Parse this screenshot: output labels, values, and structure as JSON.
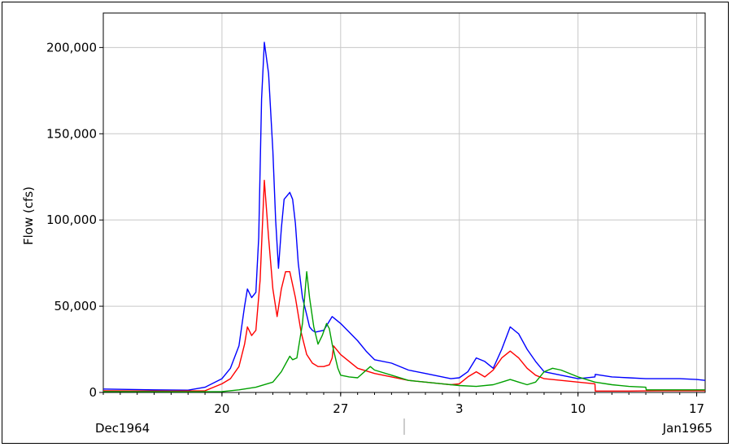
{
  "chart_data": {
    "type": "line",
    "title": "",
    "xlabel": "",
    "ylabel": "Flow (cfs)",
    "x_unit": "day (Dec 1964 – Jan 1965)",
    "xlim": [
      "1964-12-13",
      "1965-01-17 12:00"
    ],
    "ylim": [
      0,
      220000
    ],
    "yticks": [
      0,
      50000,
      100000,
      150000,
      200000
    ],
    "ytick_labels": [
      "0",
      "50,000",
      "100,000",
      "150,000",
      "200,000"
    ],
    "xticks": [
      "1964-12-20",
      "1964-12-27",
      "1965-01-03",
      "1965-01-10",
      "1965-01-17"
    ],
    "xtick_labels": [
      "20",
      "27",
      "3",
      "10",
      "17"
    ],
    "period_labels": [
      "Dec1964",
      "Jan1965"
    ],
    "grid": true,
    "legend": "none",
    "series": [
      {
        "color": "#0000ff",
        "x": [
          "1964-12-13",
          "1964-12-16",
          "1964-12-18",
          "1964-12-19",
          "1964-12-20",
          "1964-12-20 12:00",
          "1964-12-21",
          "1964-12-21 08:00",
          "1964-12-21 12:00",
          "1964-12-21 18:00",
          "1964-12-22",
          "1964-12-22 04:00",
          "1964-12-22 08:00",
          "1964-12-22 12:00",
          "1964-12-22 18:00",
          "1964-12-23",
          "1964-12-23 04:00",
          "1964-12-23 08:00",
          "1964-12-23 12:00",
          "1964-12-23 16:00",
          "1964-12-24",
          "1964-12-24 04:00",
          "1964-12-24 08:00",
          "1964-12-24 12:00",
          "1964-12-24 18:00",
          "1964-12-25",
          "1964-12-25 04:00",
          "1964-12-25 08:00",
          "1964-12-25 12:00",
          "1964-12-26",
          "1964-12-26 12:00",
          "1964-12-27",
          "1964-12-27 12:00",
          "1964-12-28",
          "1964-12-28 12:00",
          "1964-12-29",
          "1964-12-30",
          "1964-12-31",
          "1965-01-01",
          "1965-01-02",
          "1965-01-02 12:00",
          "1965-01-03",
          "1965-01-03 12:00",
          "1965-01-04",
          "1965-01-04 12:00",
          "1965-01-05",
          "1965-01-05 12:00",
          "1965-01-06",
          "1965-01-06 12:00",
          "1965-01-07",
          "1965-01-07 12:00",
          "1965-01-08",
          "1965-01-09",
          "1965-01-10",
          "1965-01-11",
          "1965-01-11 00:30",
          "1965-01-12",
          "1965-01-13",
          "1965-01-14",
          "1965-01-15",
          "1965-01-16",
          "1965-01-17",
          "1965-01-17 12:00"
        ],
        "y": [
          2000,
          1500,
          1300,
          3000,
          8000,
          14000,
          27000,
          50000,
          60000,
          55000,
          58000,
          90000,
          170000,
          203000,
          185000,
          140000,
          100000,
          72000,
          95000,
          112000,
          116000,
          112000,
          98000,
          75000,
          55000,
          45000,
          38000,
          36000,
          35000,
          36000,
          44000,
          40000,
          35000,
          30000,
          24000,
          19000,
          17000,
          13000,
          11000,
          9000,
          8000,
          8500,
          12000,
          20000,
          18000,
          14000,
          25000,
          38000,
          34000,
          25000,
          18000,
          12000,
          10000,
          8000,
          9000,
          10500,
          9000,
          8500,
          8000,
          8000,
          8000,
          7500,
          7000
        ]
      },
      {
        "color": "#ff0000",
        "x": [
          "1964-12-13",
          "1964-12-17",
          "1964-12-19",
          "1964-12-20",
          "1964-12-20 12:00",
          "1964-12-21",
          "1964-12-21 08:00",
          "1964-12-21 12:00",
          "1964-12-21 18:00",
          "1964-12-22",
          "1964-12-22 06:00",
          "1964-12-22 12:00",
          "1964-12-22 18:00",
          "1964-12-23",
          "1964-12-23 06:00",
          "1964-12-23 12:00",
          "1964-12-23 18:00",
          "1964-12-24",
          "1964-12-24 08:00",
          "1964-12-24 16:00",
          "1964-12-25",
          "1964-12-25 08:00",
          "1964-12-25 16:00",
          "1964-12-26",
          "1964-12-26 08:00",
          "1964-12-26 12:00",
          "1964-12-26 14:00",
          "1964-12-27",
          "1964-12-28",
          "1964-12-29",
          "1964-12-30",
          "1964-12-31",
          "1965-01-01",
          "1965-01-02",
          "1965-01-02 12:00",
          "1965-01-03",
          "1965-01-03 12:00",
          "1965-01-04",
          "1965-01-04 12:00",
          "1965-01-05",
          "1965-01-05 12:00",
          "1965-01-06",
          "1965-01-06 12:00",
          "1965-01-07",
          "1965-01-07 12:00",
          "1965-01-08",
          "1965-01-09",
          "1965-01-10",
          "1965-01-11",
          "1965-01-11 00:30",
          "1965-01-12",
          "1965-01-13",
          "1965-01-14",
          "1965-01-15",
          "1965-01-17 12:00"
        ],
        "y": [
          1000,
          800,
          1000,
          5000,
          8000,
          15000,
          28000,
          38000,
          33000,
          36000,
          65000,
          123000,
          90000,
          60000,
          44000,
          60000,
          70000,
          70000,
          55000,
          35000,
          22000,
          17000,
          15000,
          15000,
          16000,
          20000,
          27000,
          22000,
          14000,
          11000,
          9000,
          7000,
          6000,
          5000,
          4500,
          5000,
          9000,
          12000,
          9000,
          13000,
          20000,
          24000,
          20000,
          14000,
          10000,
          8000,
          7000,
          6000,
          5000,
          800,
          800,
          800,
          900,
          1000,
          1000
        ]
      },
      {
        "color": "#00a000",
        "x": [
          "1964-12-13",
          "1964-12-18",
          "1964-12-20",
          "1964-12-21",
          "1964-12-22",
          "1964-12-23",
          "1964-12-23 12:00",
          "1964-12-24",
          "1964-12-24 04:00",
          "1964-12-24 10:00",
          "1964-12-24 18:00",
          "1964-12-25",
          "1964-12-25 04:00",
          "1964-12-25 10:00",
          "1964-12-25 16:00",
          "1964-12-25 22:00",
          "1964-12-26 04:00",
          "1964-12-26 08:00",
          "1964-12-26 12:00",
          "1964-12-26 20:00",
          "1964-12-27",
          "1964-12-27 12:00",
          "1964-12-28",
          "1964-12-28 18:00",
          "1964-12-29",
          "1964-12-30",
          "1964-12-31",
          "1965-01-01",
          "1965-01-02",
          "1965-01-03",
          "1965-01-04",
          "1965-01-05",
          "1965-01-05 12:00",
          "1965-01-06",
          "1965-01-06 12:00",
          "1965-01-07",
          "1965-01-07 12:00",
          "1965-01-08",
          "1965-01-08 12:00",
          "1965-01-09",
          "1965-01-10",
          "1965-01-11",
          "1965-01-12",
          "1965-01-13",
          "1965-01-14",
          "1965-01-14 00:30",
          "1965-01-15",
          "1965-01-16",
          "1965-01-17",
          "1965-01-17 12:00"
        ],
        "y": [
          500,
          400,
          500,
          1500,
          3000,
          6000,
          12000,
          21000,
          19000,
          20000,
          40000,
          70000,
          55000,
          38000,
          28000,
          33000,
          40000,
          37000,
          28000,
          14000,
          10000,
          9000,
          8500,
          15000,
          13000,
          10000,
          7000,
          6000,
          5000,
          4000,
          3500,
          4500,
          6000,
          7500,
          6000,
          4500,
          6000,
          12000,
          14000,
          13000,
          9000,
          6000,
          4500,
          3500,
          3000,
          1500,
          1500,
          1500,
          1500,
          1500
        ]
      }
    ]
  }
}
